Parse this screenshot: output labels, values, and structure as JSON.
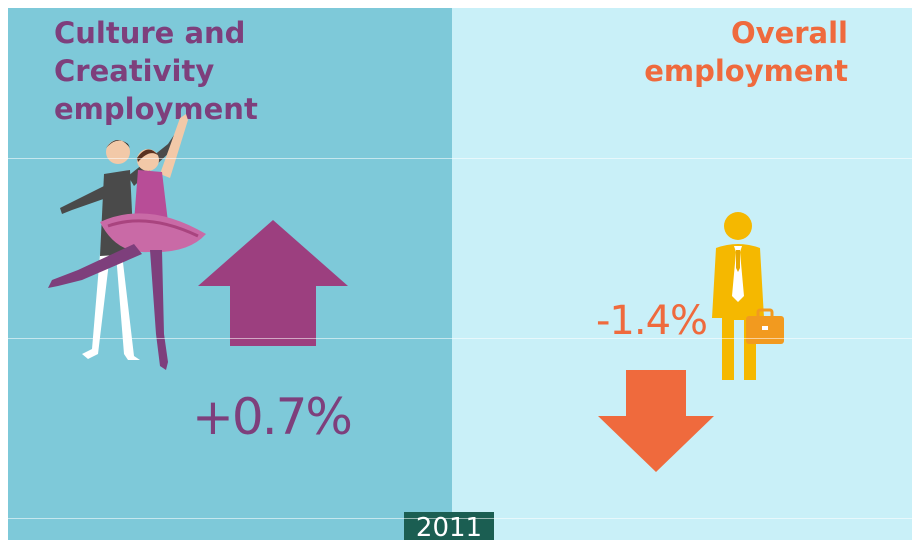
{
  "left_panel": {
    "title": "Culture and Creativity employment",
    "change": "+0.7%",
    "direction": "up",
    "color": "#7e3f7c",
    "icon": "dancers-icon"
  },
  "right_panel": {
    "title": "Overall employment",
    "change": "-1.4%",
    "direction": "down",
    "color": "#ef6a3d",
    "icon": "businessman-icon"
  },
  "year": "2011",
  "colors": {
    "left_background": "#7ec9d9",
    "right_background": "#c9f0f8",
    "year_badge": "#1b5e52"
  }
}
